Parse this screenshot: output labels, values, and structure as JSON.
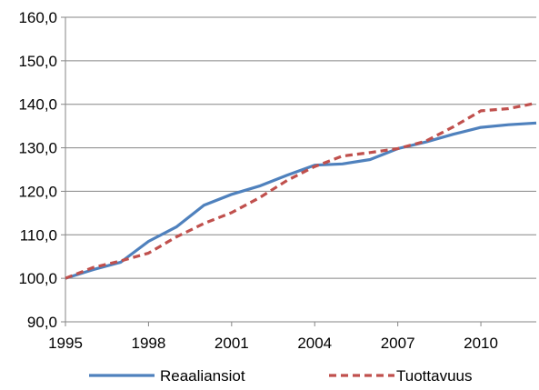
{
  "chart_data": {
    "type": "line",
    "title": "",
    "xlabel": "",
    "ylabel": "",
    "xlim": [
      1995,
      2012
    ],
    "ylim": [
      90,
      160
    ],
    "x_ticks": [
      1995,
      1998,
      2001,
      2004,
      2007,
      2010
    ],
    "x_tick_labels": [
      "1995",
      "1998",
      "2001",
      "2004",
      "2007",
      "2010"
    ],
    "y_ticks": [
      90,
      100,
      110,
      120,
      130,
      140,
      150,
      160
    ],
    "y_tick_labels": [
      "90,0",
      "100,0",
      "110,0",
      "120,0",
      "130,0",
      "140,0",
      "150,0",
      "160,0"
    ],
    "grid": true,
    "legend_position": "bottom",
    "x": [
      1995,
      1996,
      1997,
      1998,
      1999,
      2000,
      2001,
      2002,
      2003,
      2004,
      2005,
      2006,
      2007,
      2008,
      2009,
      2010,
      2011,
      2012
    ],
    "series": [
      {
        "name": "Reaaliansiot",
        "color": "#4f81bd",
        "style": "solid",
        "values": [
          100.0,
          102.0,
          103.7,
          108.5,
          111.8,
          116.8,
          119.3,
          121.2,
          123.7,
          126.0,
          126.3,
          127.3,
          129.8,
          131.3,
          133.1,
          134.7,
          135.3,
          135.7
        ]
      },
      {
        "name": "Tuottavuus",
        "color": "#c0504d",
        "style": "dashed",
        "values": [
          100.0,
          102.5,
          104.0,
          105.8,
          109.5,
          112.6,
          115.1,
          118.5,
          122.5,
          125.7,
          128.1,
          128.9,
          129.8,
          131.5,
          134.8,
          138.5,
          139.0,
          140.3
        ]
      }
    ]
  }
}
